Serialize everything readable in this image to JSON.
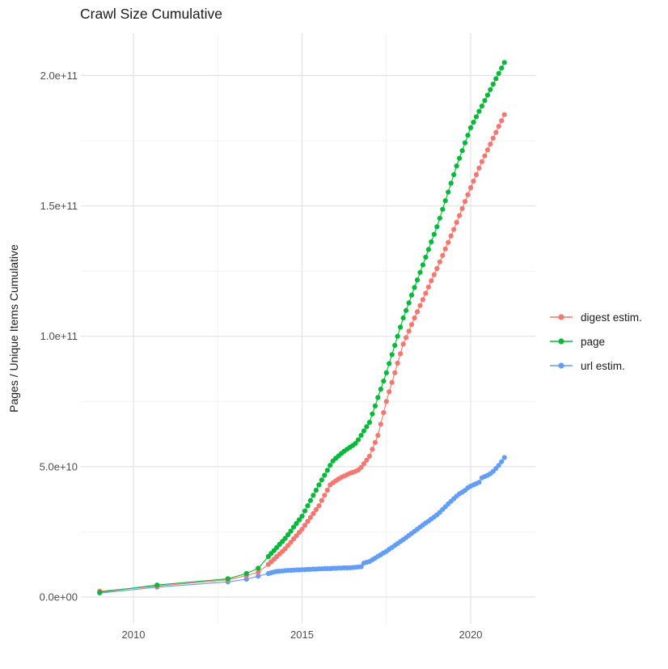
{
  "title": "Crawl Size Cumulative",
  "axes": {
    "y_title": "Pages / Unique Items Cumulative",
    "x_tick_labels": [
      "2010",
      "2015",
      "2020"
    ],
    "y_tick_labels": [
      "0.0e+00",
      "5.0e+10",
      "1.0e+11",
      "1.5e+11",
      "2.0e+11"
    ]
  },
  "legend": [
    {
      "label": "digest estim.",
      "color": "#F8766D"
    },
    {
      "label": "page",
      "color": "#00BA38"
    },
    {
      "label": "url estim.",
      "color": "#619CFF"
    }
  ],
  "colors": {
    "background": "#FFFFFF",
    "grid_major": "#E3E3E3",
    "grid_minor": "#F0F0F0",
    "tick_label": "#4D4D4D",
    "text": "#1A1A1A",
    "digest": "#F8766D",
    "page": "#00BA38",
    "url": "#619CFF"
  },
  "chart_data": {
    "type": "line",
    "title": "Crawl Size Cumulative",
    "xlabel": "",
    "ylabel": "Pages / Unique Items Cumulative",
    "grid": true,
    "legend_position": "right",
    "x_unit": "year (crawl date)",
    "y_unit": "cumulative count; point values stored in billions (1e9)",
    "xlim": [
      2008.45,
      2021.75
    ],
    "ylim": [
      0,
      216000000000.0
    ],
    "x_major_ticks": [
      2010,
      2015,
      2020
    ],
    "x_minor_ticks": [
      2012.5,
      2017.5
    ],
    "x_tick_labels": [
      "2010",
      "2015",
      "2020"
    ],
    "y_major_ticks_e9": [
      0,
      50,
      100,
      150,
      200
    ],
    "y_minor_ticks_e9": [
      25,
      75,
      125,
      175
    ],
    "y_tick_labels": [
      "0.0e+00",
      "5.0e+10",
      "1.0e+11",
      "1.5e+11",
      "2.0e+11"
    ],
    "series": [
      {
        "name": "digest estim.",
        "color": "#F8766D",
        "points_year_value_e9": [
          [
            2009.0,
            2.2
          ],
          [
            2010.7,
            4.2
          ],
          [
            2012.8,
            6.6
          ],
          [
            2013.35,
            8.2
          ],
          [
            2013.7,
            9.5
          ],
          [
            2014.0,
            12.5
          ],
          [
            2014.083,
            13.5
          ],
          [
            2014.167,
            14.5
          ],
          [
            2014.25,
            15.5
          ],
          [
            2014.333,
            16.5
          ],
          [
            2014.417,
            17.5
          ],
          [
            2014.5,
            18.5
          ],
          [
            2014.583,
            19.8
          ],
          [
            2014.667,
            21.0
          ],
          [
            2014.75,
            22.3
          ],
          [
            2014.833,
            23.5
          ],
          [
            2014.917,
            24.8
          ],
          [
            2015.0,
            26.0
          ],
          [
            2015.083,
            27.5
          ],
          [
            2015.167,
            29.0
          ],
          [
            2015.25,
            30.5
          ],
          [
            2015.333,
            32.0
          ],
          [
            2015.417,
            33.5
          ],
          [
            2015.5,
            35.0
          ],
          [
            2015.583,
            37.0
          ],
          [
            2015.667,
            39.0
          ],
          [
            2015.75,
            41.0
          ],
          [
            2015.833,
            43.0
          ],
          [
            2015.917,
            43.8
          ],
          [
            2016.0,
            44.6
          ],
          [
            2016.083,
            45.3
          ],
          [
            2016.167,
            45.9
          ],
          [
            2016.25,
            46.4
          ],
          [
            2016.333,
            46.9
          ],
          [
            2016.417,
            47.4
          ],
          [
            2016.5,
            47.8
          ],
          [
            2016.583,
            48.2
          ],
          [
            2016.667,
            48.7
          ],
          [
            2016.75,
            49.7
          ],
          [
            2016.833,
            51.1
          ],
          [
            2016.917,
            52.5
          ],
          [
            2017.0,
            54.0
          ],
          [
            2017.083,
            56.7
          ],
          [
            2017.167,
            59.3
          ],
          [
            2017.25,
            62.0
          ],
          [
            2017.333,
            66.3
          ],
          [
            2017.417,
            70.7
          ],
          [
            2017.5,
            75.0
          ],
          [
            2017.583,
            78.7
          ],
          [
            2017.667,
            82.3
          ],
          [
            2017.75,
            86.0
          ],
          [
            2017.833,
            89.7
          ],
          [
            2017.917,
            93.3
          ],
          [
            2018.0,
            97.0
          ],
          [
            2018.083,
            99.5
          ],
          [
            2018.167,
            102.0
          ],
          [
            2018.25,
            104.5
          ],
          [
            2018.333,
            107.0
          ],
          [
            2018.417,
            109.4
          ],
          [
            2018.5,
            111.8
          ],
          [
            2018.583,
            114.1
          ],
          [
            2018.667,
            116.5
          ],
          [
            2018.75,
            118.9
          ],
          [
            2018.833,
            121.3
          ],
          [
            2018.917,
            123.6
          ],
          [
            2019.0,
            126.0
          ],
          [
            2019.083,
            128.5
          ],
          [
            2019.167,
            131.0
          ],
          [
            2019.25,
            133.5
          ],
          [
            2019.333,
            136.0
          ],
          [
            2019.417,
            138.5
          ],
          [
            2019.5,
            141.0
          ],
          [
            2019.583,
            143.7
          ],
          [
            2019.667,
            146.3
          ],
          [
            2019.75,
            149.0
          ],
          [
            2019.833,
            151.7
          ],
          [
            2019.917,
            154.3
          ],
          [
            2020.0,
            157.0
          ],
          [
            2020.083,
            159.5
          ],
          [
            2020.167,
            162.0
          ],
          [
            2020.25,
            164.5
          ],
          [
            2020.333,
            167.0
          ],
          [
            2020.417,
            169.2
          ],
          [
            2020.5,
            171.5
          ],
          [
            2020.583,
            173.7
          ],
          [
            2020.667,
            176.0
          ],
          [
            2020.75,
            178.2
          ],
          [
            2020.833,
            180.5
          ],
          [
            2020.917,
            182.7
          ],
          [
            2021.0,
            185.0
          ]
        ]
      },
      {
        "name": "page",
        "color": "#00BA38",
        "points_year_value_e9": [
          [
            2009.0,
            1.8
          ],
          [
            2010.7,
            4.6
          ],
          [
            2012.8,
            7.0
          ],
          [
            2013.35,
            9.0
          ],
          [
            2013.7,
            11.0
          ],
          [
            2014.0,
            15.5
          ],
          [
            2014.083,
            16.7
          ],
          [
            2014.167,
            17.8
          ],
          [
            2014.25,
            19.0
          ],
          [
            2014.333,
            20.2
          ],
          [
            2014.417,
            21.3
          ],
          [
            2014.5,
            22.5
          ],
          [
            2014.583,
            23.9
          ],
          [
            2014.667,
            25.3
          ],
          [
            2014.75,
            26.8
          ],
          [
            2014.833,
            28.2
          ],
          [
            2014.917,
            29.6
          ],
          [
            2015.0,
            31.0
          ],
          [
            2015.083,
            33.0
          ],
          [
            2015.167,
            35.0
          ],
          [
            2015.25,
            37.0
          ],
          [
            2015.333,
            39.0
          ],
          [
            2015.417,
            41.0
          ],
          [
            2015.5,
            43.0
          ],
          [
            2015.583,
            44.9
          ],
          [
            2015.667,
            46.7
          ],
          [
            2015.75,
            48.6
          ],
          [
            2015.833,
            50.5
          ],
          [
            2015.917,
            52.2
          ],
          [
            2016.0,
            53.2
          ],
          [
            2016.083,
            54.1
          ],
          [
            2016.167,
            55.1
          ],
          [
            2016.25,
            55.9
          ],
          [
            2016.333,
            56.7
          ],
          [
            2016.417,
            57.4
          ],
          [
            2016.5,
            58.1
          ],
          [
            2016.583,
            58.9
          ],
          [
            2016.667,
            60.3
          ],
          [
            2016.75,
            62.0
          ],
          [
            2016.833,
            63.7
          ],
          [
            2016.917,
            65.3
          ],
          [
            2017.0,
            67.0
          ],
          [
            2017.083,
            70.2
          ],
          [
            2017.167,
            73.3
          ],
          [
            2017.25,
            76.5
          ],
          [
            2017.333,
            79.7
          ],
          [
            2017.417,
            82.8
          ],
          [
            2017.5,
            86.0
          ],
          [
            2017.583,
            89.5
          ],
          [
            2017.667,
            93.0
          ],
          [
            2017.75,
            96.5
          ],
          [
            2017.833,
            100.0
          ],
          [
            2017.917,
            103.5
          ],
          [
            2018.0,
            107.0
          ],
          [
            2018.083,
            109.9
          ],
          [
            2018.167,
            112.8
          ],
          [
            2018.25,
            115.8
          ],
          [
            2018.333,
            118.7
          ],
          [
            2018.417,
            121.6
          ],
          [
            2018.5,
            124.5
          ],
          [
            2018.583,
            127.4
          ],
          [
            2018.667,
            130.3
          ],
          [
            2018.75,
            133.3
          ],
          [
            2018.833,
            136.2
          ],
          [
            2018.917,
            139.1
          ],
          [
            2019.0,
            142.0
          ],
          [
            2019.083,
            145.3
          ],
          [
            2019.167,
            148.7
          ],
          [
            2019.25,
            152.0
          ],
          [
            2019.333,
            155.3
          ],
          [
            2019.417,
            158.7
          ],
          [
            2019.5,
            162.0
          ],
          [
            2019.583,
            165.3
          ],
          [
            2019.667,
            168.3
          ],
          [
            2019.75,
            171.2
          ],
          [
            2019.833,
            174.2
          ],
          [
            2019.917,
            177.1
          ],
          [
            2020.0,
            180.0
          ],
          [
            2020.083,
            182.1
          ],
          [
            2020.167,
            184.2
          ],
          [
            2020.25,
            186.3
          ],
          [
            2020.333,
            188.3
          ],
          [
            2020.417,
            190.4
          ],
          [
            2020.5,
            192.5
          ],
          [
            2020.583,
            194.6
          ],
          [
            2020.667,
            196.7
          ],
          [
            2020.75,
            198.8
          ],
          [
            2020.833,
            200.8
          ],
          [
            2020.917,
            202.9
          ],
          [
            2021.0,
            205.0
          ]
        ]
      },
      {
        "name": "url estim.",
        "color": "#619CFF",
        "points_year_value_e9": [
          [
            2009.0,
            1.5
          ],
          [
            2010.7,
            3.8
          ],
          [
            2012.8,
            5.8
          ],
          [
            2013.35,
            6.8
          ],
          [
            2013.7,
            8.0
          ],
          [
            2014.0,
            9.0
          ],
          [
            2014.083,
            9.3
          ],
          [
            2014.167,
            9.6
          ],
          [
            2014.25,
            9.8
          ],
          [
            2014.333,
            9.9
          ],
          [
            2014.417,
            10.0
          ],
          [
            2014.5,
            10.1
          ],
          [
            2014.583,
            10.2
          ],
          [
            2014.667,
            10.2
          ],
          [
            2014.75,
            10.3
          ],
          [
            2014.833,
            10.4
          ],
          [
            2014.917,
            10.4
          ],
          [
            2015.0,
            10.5
          ],
          [
            2015.083,
            10.5
          ],
          [
            2015.167,
            10.6
          ],
          [
            2015.25,
            10.6
          ],
          [
            2015.333,
            10.7
          ],
          [
            2015.417,
            10.7
          ],
          [
            2015.5,
            10.8
          ],
          [
            2015.583,
            10.8
          ],
          [
            2015.667,
            10.9
          ],
          [
            2015.75,
            10.9
          ],
          [
            2015.833,
            10.9
          ],
          [
            2015.917,
            11.0
          ],
          [
            2016.0,
            11.0
          ],
          [
            2016.083,
            11.1
          ],
          [
            2016.167,
            11.1
          ],
          [
            2016.25,
            11.2
          ],
          [
            2016.333,
            11.2
          ],
          [
            2016.417,
            11.2
          ],
          [
            2016.5,
            11.3
          ],
          [
            2016.583,
            11.4
          ],
          [
            2016.667,
            11.5
          ],
          [
            2016.75,
            11.6
          ],
          [
            2016.833,
            13.0
          ],
          [
            2016.917,
            13.3
          ],
          [
            2017.0,
            13.6
          ],
          [
            2017.083,
            14.3
          ],
          [
            2017.167,
            14.9
          ],
          [
            2017.25,
            15.6
          ],
          [
            2017.333,
            16.2
          ],
          [
            2017.417,
            16.9
          ],
          [
            2017.5,
            17.5
          ],
          [
            2017.583,
            18.3
          ],
          [
            2017.667,
            19.0
          ],
          [
            2017.75,
            19.8
          ],
          [
            2017.833,
            20.5
          ],
          [
            2017.917,
            21.3
          ],
          [
            2018.0,
            22.0
          ],
          [
            2018.083,
            22.8
          ],
          [
            2018.167,
            23.6
          ],
          [
            2018.25,
            24.4
          ],
          [
            2018.333,
            25.2
          ],
          [
            2018.417,
            26.0
          ],
          [
            2018.5,
            26.8
          ],
          [
            2018.583,
            27.6
          ],
          [
            2018.667,
            28.4
          ],
          [
            2018.75,
            29.1
          ],
          [
            2018.833,
            29.9
          ],
          [
            2018.917,
            30.7
          ],
          [
            2019.0,
            31.5
          ],
          [
            2019.083,
            32.5
          ],
          [
            2019.167,
            33.6
          ],
          [
            2019.25,
            34.6
          ],
          [
            2019.333,
            35.7
          ],
          [
            2019.417,
            36.7
          ],
          [
            2019.5,
            37.7
          ],
          [
            2019.583,
            38.7
          ],
          [
            2019.667,
            39.6
          ],
          [
            2019.75,
            40.2
          ],
          [
            2019.833,
            40.9
          ],
          [
            2019.917,
            41.9
          ],
          [
            2020.0,
            42.5
          ],
          [
            2020.083,
            43.0
          ],
          [
            2020.167,
            43.5
          ],
          [
            2020.25,
            44.0
          ],
          [
            2020.333,
            45.7
          ],
          [
            2020.417,
            46.2
          ],
          [
            2020.5,
            46.7
          ],
          [
            2020.583,
            47.3
          ],
          [
            2020.667,
            48.2
          ],
          [
            2020.75,
            49.3
          ],
          [
            2020.833,
            50.5
          ],
          [
            2020.917,
            51.9
          ],
          [
            2021.0,
            53.5
          ]
        ]
      }
    ]
  }
}
